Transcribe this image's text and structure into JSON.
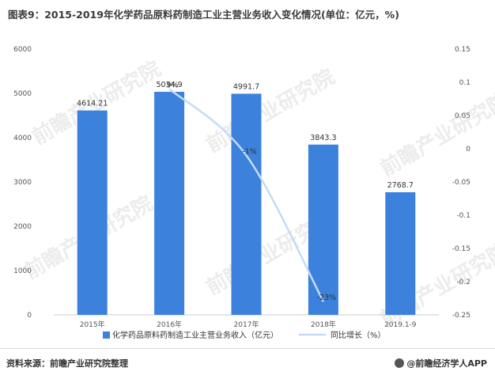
{
  "title": "图表9：2015-2019年化学药品原料药制造工业主营业务收入变化情况(单位：亿元，%)",
  "source": "资料来源：前瞻产业研究院整理",
  "brand": "@前瞻经济学人APP",
  "watermark": "前瞻产业研究院",
  "colors": {
    "bar": "#3c82dc",
    "line": "#c5dbf5"
  },
  "chart_data": {
    "type": "bar",
    "categories": [
      "2015年",
      "2016年",
      "2017年",
      "2018年",
      "2019.1-9"
    ],
    "series": [
      {
        "name": "化学药品原料药制造工业主营业务收入（亿元）",
        "type": "bar",
        "axis": "left",
        "values": [
          4614.21,
          5034.9,
          4991.7,
          3843.3,
          2768.7
        ],
        "labels": [
          "4614.21",
          "5034.9",
          "4991.7",
          "3843.3",
          "2768.7"
        ]
      },
      {
        "name": "同比增长（%）",
        "type": "line",
        "axis": "right",
        "values": [
          null,
          0.09,
          -0.01,
          -0.23,
          null
        ],
        "labels": [
          "",
          "9%",
          "-1%",
          "-23%",
          ""
        ]
      }
    ],
    "yleft": {
      "lim": [
        0,
        6000
      ],
      "ticks": [
        "0",
        "1000",
        "2000",
        "3000",
        "4000",
        "5000",
        "6000"
      ]
    },
    "yright": {
      "lim": [
        -0.25,
        0.15
      ],
      "ticks": [
        "-0.25",
        "-0.2",
        "-0.15",
        "-0.1",
        "-0.05",
        "0",
        "0.05",
        "0.1",
        "0.15"
      ]
    },
    "legend": "bottom",
    "grid": false
  }
}
